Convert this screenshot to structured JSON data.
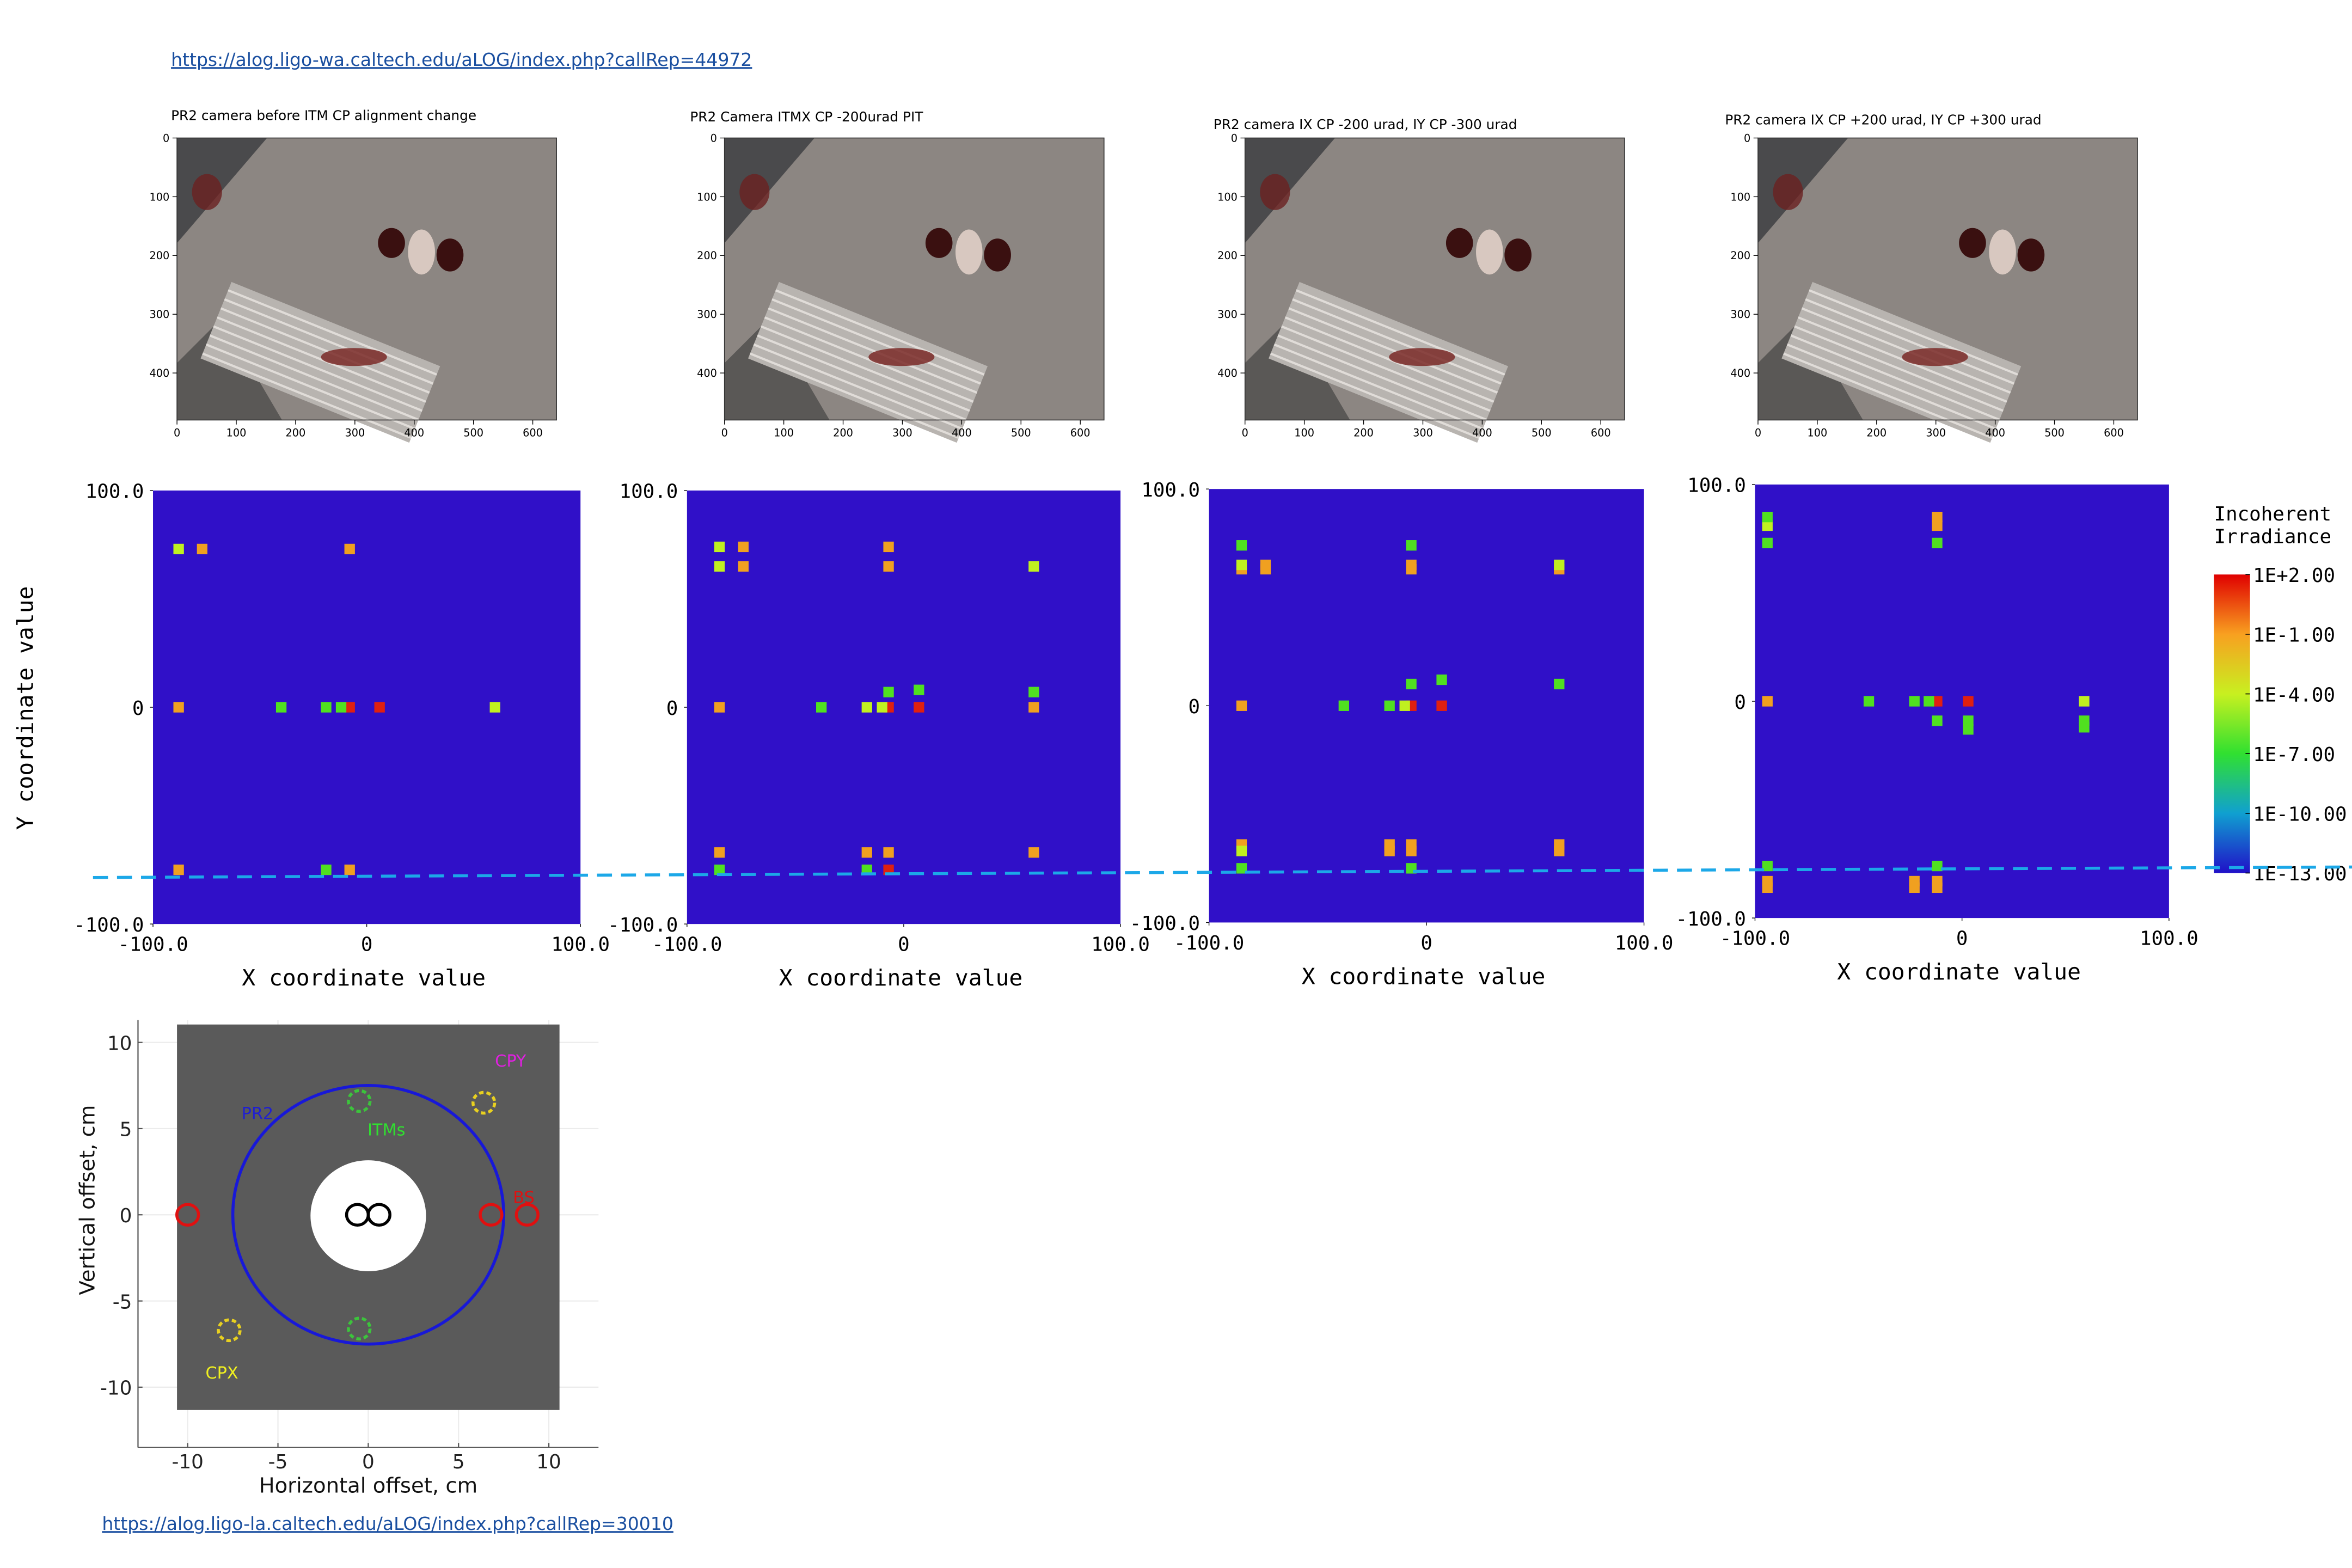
{
  "links": [
    "https://alog.ligo-wa.caltech.edu/aLOG/index.php?callRep=44972",
    "https://alog.ligo-la.caltech.edu/aLOG/index.php?callRep=30010"
  ],
  "chart_data": [
    {
      "type": "image",
      "title": "PR2 camera before ITM CP alignment change",
      "xlim": [
        0,
        640
      ],
      "ylim": [
        0,
        480
      ],
      "y_inverted": true,
      "xticks": [
        0,
        100,
        200,
        300,
        400,
        500,
        600
      ],
      "yticks": [
        0,
        100,
        200,
        300,
        400
      ]
    },
    {
      "type": "image",
      "title": "PR2 Camera ITMX CP -200urad PIT",
      "xlim": [
        0,
        640
      ],
      "ylim": [
        0,
        480
      ],
      "y_inverted": true,
      "xticks": [
        0,
        100,
        200,
        300,
        400,
        500,
        600
      ],
      "yticks": [
        0,
        100,
        200,
        300,
        400
      ]
    },
    {
      "type": "image",
      "title": "PR2 camera IX CP -200 urad, IY CP -300 urad",
      "xlim": [
        0,
        640
      ],
      "ylim": [
        0,
        480
      ],
      "y_inverted": true,
      "xticks": [
        0,
        100,
        200,
        300,
        400,
        500,
        600
      ],
      "yticks": [
        0,
        100,
        200,
        300,
        400
      ]
    },
    {
      "type": "image",
      "title": "PR2 camera IX CP +200 urad, IY CP +300 urad",
      "xlim": [
        0,
        640
      ],
      "ylim": [
        0,
        480
      ],
      "y_inverted": true,
      "xticks": [
        0,
        100,
        200,
        300,
        400,
        500,
        600
      ],
      "yticks": [
        0,
        100,
        200,
        300,
        400
      ]
    },
    {
      "type": "raytrace",
      "ylabel": "Y coordinate value",
      "xlabel": "X coordinate value",
      "background": "#3010c8",
      "xlim": [
        -100,
        100
      ],
      "ylim": [
        -100,
        100
      ],
      "xticks": [
        {
          "value": -100,
          "label": "-100.0"
        },
        0,
        {
          "value": 100,
          "label": "100.0"
        }
      ],
      "yticks": [
        {
          "value": -100,
          "label": "-100.0"
        },
        0,
        {
          "value": 100,
          "label": "100.0"
        }
      ],
      "series": [
        {
          "color": "#e02010",
          "x": [
            -8,
            6
          ],
          "y": [
            0,
            0
          ]
        },
        {
          "color": "#f0a020",
          "x": [
            -77,
            -8,
            -88,
            -88,
            -8
          ],
          "y": [
            73,
            73,
            0,
            -75,
            -75
          ]
        },
        {
          "color": "#c0f020",
          "x": [
            -88,
            60
          ],
          "y": [
            73,
            0
          ]
        },
        {
          "color": "#50e020",
          "x": [
            -40,
            -19,
            -12,
            -19
          ],
          "y": [
            0,
            0,
            0,
            -75
          ]
        }
      ]
    },
    {
      "type": "raytrace",
      "xlabel": "X coordinate value",
      "background": "#3010c8",
      "xlim": [
        -100,
        100
      ],
      "ylim": [
        -100,
        100
      ],
      "xticks": [
        {
          "value": -100,
          "label": "-100.0"
        },
        0,
        {
          "value": 100,
          "label": "100.0"
        }
      ],
      "yticks": [
        {
          "value": -100,
          "label": "-100.0"
        },
        0,
        {
          "value": 100,
          "label": "100.0"
        }
      ],
      "series": [
        {
          "color": "#e02010",
          "x": [
            -7,
            7,
            -7
          ],
          "y": [
            0,
            0,
            -75
          ]
        },
        {
          "color": "#f0a020",
          "x": [
            -74,
            -7,
            -74,
            -7,
            -85,
            60,
            -85,
            -17,
            -7,
            60
          ],
          "y": [
            74,
            74,
            65,
            65,
            0,
            0,
            -67,
            -67,
            -67,
            -67
          ]
        },
        {
          "color": "#c0f020",
          "x": [
            -85,
            -85,
            60,
            -17,
            -10
          ],
          "y": [
            74,
            65,
            65,
            0,
            0
          ]
        },
        {
          "color": "#50e020",
          "x": [
            -38,
            -7,
            7,
            60,
            -85,
            -17
          ],
          "y": [
            0,
            7,
            8,
            7,
            -75,
            -75
          ]
        }
      ]
    },
    {
      "type": "raytrace",
      "xlabel": "X coordinate value",
      "background": "#3010c8",
      "xlim": [
        -100,
        100
      ],
      "ylim": [
        -100,
        100
      ],
      "xticks": [
        {
          "value": -100,
          "label": "-100.0"
        },
        0,
        {
          "value": 100,
          "label": "100.0"
        }
      ],
      "yticks": [
        {
          "value": -100,
          "label": "-100.0"
        },
        0,
        {
          "value": 100,
          "label": "100.0"
        }
      ],
      "series": [
        {
          "color": "#e02010",
          "x": [
            -7,
            7
          ],
          "y": [
            0,
            0
          ]
        },
        {
          "color": "#f0a020",
          "x": [
            -85,
            -74,
            -74,
            -7,
            -7,
            61,
            -85,
            -85,
            -17,
            -17,
            -7,
            -7,
            61,
            61
          ],
          "y": [
            63,
            65,
            63,
            65,
            63,
            63,
            0,
            -64,
            -64,
            -67,
            -64,
            -67,
            -64,
            -67
          ]
        },
        {
          "color": "#c0f020",
          "x": [
            -85,
            61,
            -85,
            -10
          ],
          "y": [
            65,
            65,
            -67,
            0
          ]
        },
        {
          "color": "#50e020",
          "x": [
            -85,
            -7,
            -38,
            -17,
            -7,
            7,
            61,
            -85,
            -7
          ],
          "y": [
            74,
            74,
            0,
            0,
            10,
            12,
            10,
            -75,
            -75
          ]
        }
      ]
    },
    {
      "type": "raytrace",
      "xlabel": "X coordinate value",
      "background": "#3010c8",
      "xlim": [
        -100,
        100
      ],
      "ylim": [
        -100,
        100
      ],
      "xticks": [
        {
          "value": -100,
          "label": "-100.0"
        },
        0,
        {
          "value": 100,
          "label": "100.0"
        }
      ],
      "yticks": [
        {
          "value": -100,
          "label": "-100.0"
        },
        0,
        {
          "value": 100,
          "label": "100.0"
        }
      ],
      "series": [
        {
          "color": "#e02010",
          "x": [
            -12,
            3
          ],
          "y": [
            0,
            0
          ]
        },
        {
          "color": "#f0a020",
          "x": [
            -12,
            -12,
            -94,
            -94,
            -94,
            -23,
            -23,
            -12,
            -12
          ],
          "y": [
            85,
            81,
            0,
            -83,
            -86,
            -83,
            -86,
            -83,
            -86
          ]
        },
        {
          "color": "#c0f020",
          "x": [
            -94,
            59
          ],
          "y": [
            81,
            0
          ]
        },
        {
          "color": "#50e020",
          "x": [
            -94,
            -94,
            -12,
            -45,
            -23,
            -16,
            -12,
            3,
            3,
            59,
            59,
            -94,
            -12
          ],
          "y": [
            85,
            73,
            73,
            0,
            0,
            0,
            -9,
            -9,
            -13,
            -9,
            -12,
            -76,
            -76
          ]
        }
      ]
    },
    {
      "type": "colorbar",
      "title_lines": [
        "Incoherent",
        "Irradiance"
      ],
      "log": true,
      "clim": [
        1e-13,
        100
      ],
      "ticks": [
        {
          "value": 100,
          "label": "1E+2.00"
        },
        {
          "value": 0.1,
          "label": "1E-1.00"
        },
        {
          "value": 0.0001,
          "label": "1E-4.00"
        },
        {
          "value": 1e-07,
          "label": "1E-7.00"
        },
        {
          "value": 1e-10,
          "label": "1E-10.00"
        },
        {
          "value": 1e-13,
          "label": "1E-13.00"
        }
      ]
    },
    {
      "type": "beam-map",
      "xlabel": "Horizontal offset, cm",
      "ylabel": "Vertical offset, cm",
      "xlim": [
        -12.75,
        12.75
      ],
      "ylim": [
        -13.5,
        11.3
      ],
      "xticks": [
        -10,
        -5,
        0,
        5,
        10
      ],
      "yticks": [
        -10,
        -5,
        0,
        5,
        10
      ],
      "grid": true,
      "series": [
        {
          "name": "PR2",
          "color": "#1818d8",
          "dashed": false,
          "x": [
            0
          ],
          "y": [
            0
          ],
          "r": [
            7.5
          ]
        },
        {
          "color": "#000000",
          "dashed": false,
          "x": [
            -0.6,
            0.6
          ],
          "y": [
            0,
            0
          ],
          "r": [
            0.6,
            0.6
          ]
        },
        {
          "name": "ITMs",
          "color": "#3cc43c",
          "dashed": true,
          "x": [
            -0.5,
            -0.5
          ],
          "y": [
            6.6,
            -6.6
          ],
          "r": [
            0.6,
            0.6
          ]
        },
        {
          "name": "CPY",
          "color": "#e8d020",
          "dashed": true,
          "x": [
            6.4
          ],
          "y": [
            6.5
          ],
          "r": [
            0.6
          ]
        },
        {
          "name": "BS",
          "color": "#e01010",
          "dashed": false,
          "x": [
            -10,
            6.8,
            8.8
          ],
          "y": [
            0,
            0,
            0
          ],
          "r": [
            0.6,
            0.6,
            0.6
          ]
        },
        {
          "name": "CPX",
          "color": "#e8d020",
          "dashed": true,
          "x": [
            -7.7
          ],
          "y": [
            -6.7
          ],
          "r": [
            0.6
          ]
        }
      ]
    }
  ]
}
